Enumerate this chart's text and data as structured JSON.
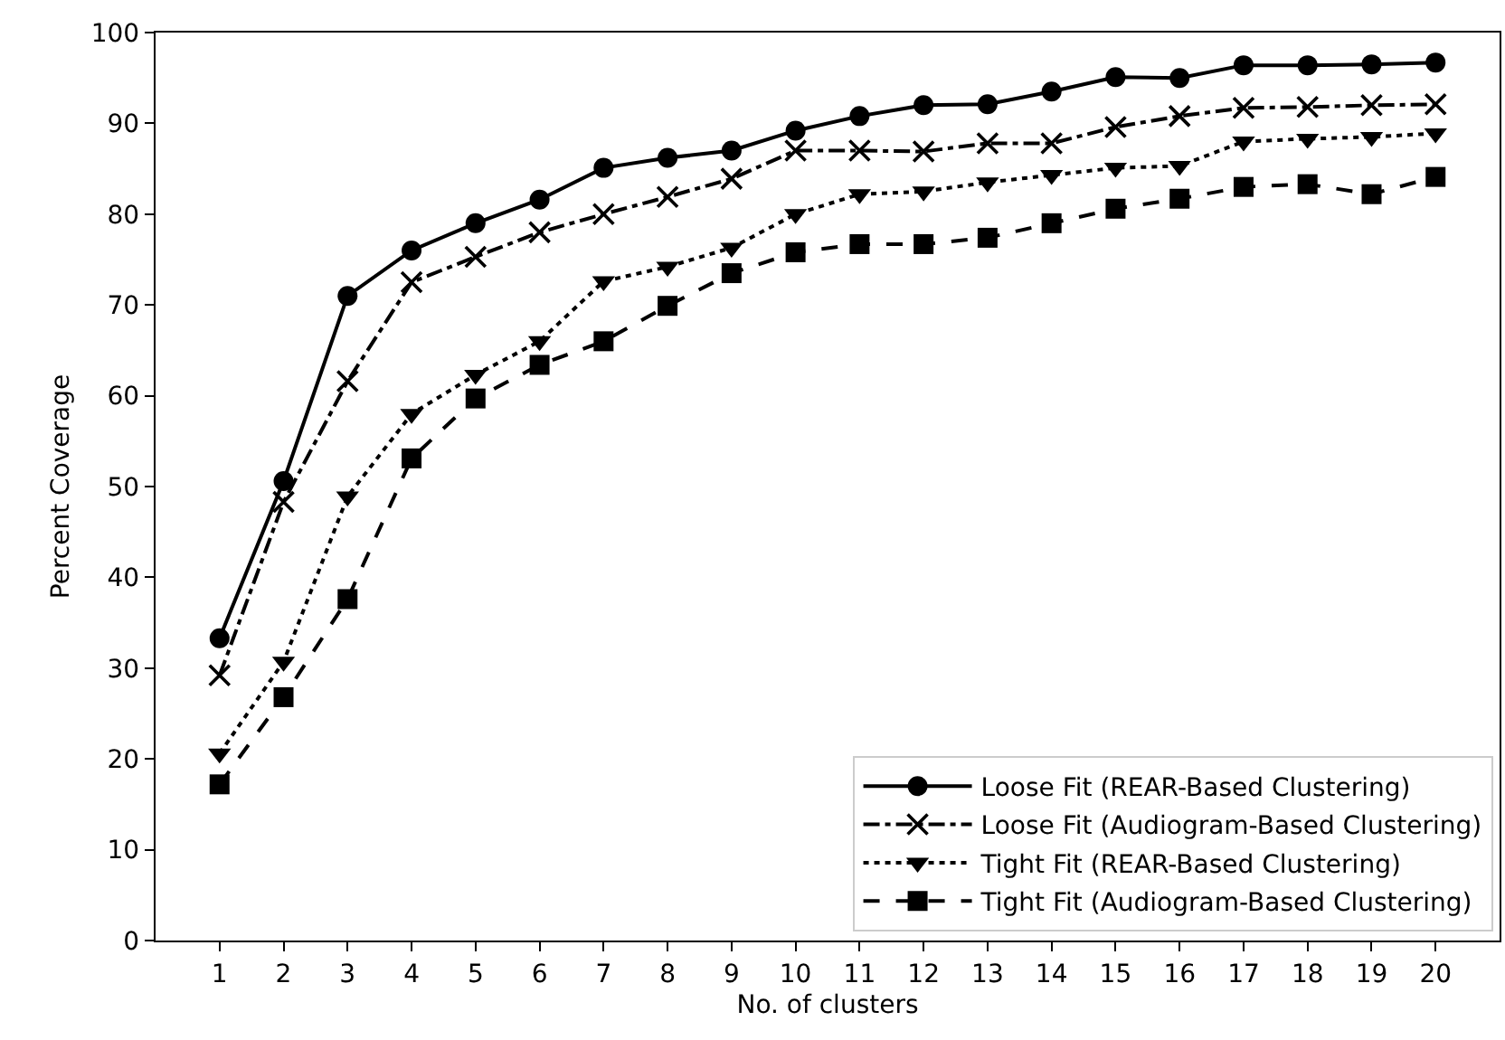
{
  "chart_data": {
    "type": "line",
    "xlabel": "No. of clusters",
    "ylabel": "Percent Coverage",
    "x": [
      1,
      2,
      3,
      4,
      5,
      6,
      7,
      8,
      9,
      10,
      11,
      12,
      13,
      14,
      15,
      16,
      17,
      18,
      19,
      20
    ],
    "xlim": [
      0,
      21
    ],
    "xticks": [
      1,
      2,
      3,
      4,
      5,
      6,
      7,
      8,
      9,
      10,
      11,
      12,
      13,
      14,
      15,
      16,
      17,
      18,
      19,
      20
    ],
    "ylim": [
      0,
      100
    ],
    "yticks": [
      0,
      10,
      20,
      30,
      40,
      50,
      60,
      70,
      80,
      90,
      100
    ],
    "grid": false,
    "legend": "bottom right",
    "series": [
      {
        "name": "Loose Fit (REAR-Based Clustering)",
        "color": "#000000",
        "marker": "circle",
        "line_style": "solid",
        "values": [
          33.3,
          50.6,
          71,
          76,
          79,
          81.6,
          85.1,
          86.2,
          87,
          89.2,
          90.8,
          92,
          92.1,
          93.5,
          95.1,
          95,
          96.4,
          96.4,
          96.5,
          96.7
        ]
      },
      {
        "name": "Loose Fit (Audiogram-Based Clustering)",
        "color": "#000000",
        "marker": "cross",
        "line_style": "dashdot",
        "values": [
          29.2,
          48.3,
          61.6,
          72.5,
          75.3,
          78,
          80,
          81.9,
          83.9,
          87,
          87,
          86.9,
          87.8,
          87.8,
          89.6,
          90.8,
          91.7,
          91.8,
          92,
          92.1
        ]
      },
      {
        "name": "Tight Fit (REAR-Based Clustering)",
        "color": "#000000",
        "marker": "triangle",
        "line_style": "dotted",
        "values": [
          20.6,
          30.7,
          48.9,
          58,
          62.3,
          66,
          72.6,
          74.2,
          76.3,
          80,
          82.2,
          82.5,
          83.5,
          84.3,
          85.1,
          85.3,
          88,
          88.3,
          88.5,
          88.9
        ]
      },
      {
        "name": "Tight Fit (Audiogram-Based Clustering)",
        "color": "#000000",
        "marker": "square",
        "line_style": "dashed",
        "values": [
          17.2,
          26.8,
          37.6,
          53.1,
          59.7,
          63.4,
          66,
          69.9,
          73.5,
          75.8,
          76.7,
          76.7,
          77.4,
          79,
          80.6,
          81.7,
          83,
          83.3,
          82.2,
          84.1
        ]
      }
    ]
  }
}
